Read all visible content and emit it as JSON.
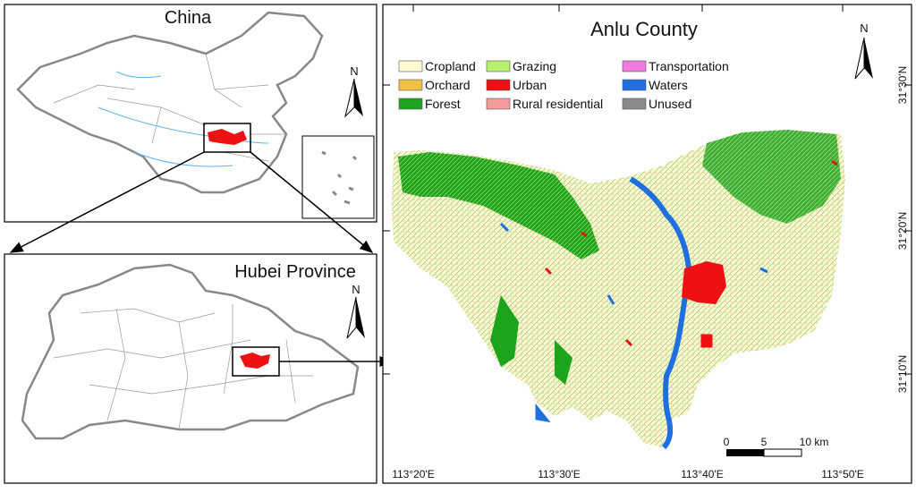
{
  "china": {
    "title": "China",
    "north": "N"
  },
  "hubei": {
    "title": "Hubei Province",
    "north": "N"
  },
  "anlu": {
    "title": "Anlu County",
    "north": "N",
    "legend": [
      {
        "name": "Cropland",
        "color": "#fffbd0"
      },
      {
        "name": "Grazing",
        "color": "#b6f26e"
      },
      {
        "name": "Transportation",
        "color": "#f07ce0"
      },
      {
        "name": "Orchard",
        "color": "#f5c042"
      },
      {
        "name": "Urban",
        "color": "#ee1111"
      },
      {
        "name": "Waters",
        "color": "#1f6fe0"
      },
      {
        "name": "Forest",
        "color": "#1da41d"
      },
      {
        "name": "Rural residential",
        "color": "#f59a9a"
      },
      {
        "name": "Unused",
        "color": "#8a8a8a"
      }
    ],
    "scale_bar": [
      "0",
      "5",
      "10 km"
    ],
    "latitudes": [
      "31°30'N",
      "31°20'N",
      "31°10'N"
    ],
    "longitudes": [
      "113°20'E",
      "113°30'E",
      "113°40'E",
      "113°50'E"
    ]
  }
}
